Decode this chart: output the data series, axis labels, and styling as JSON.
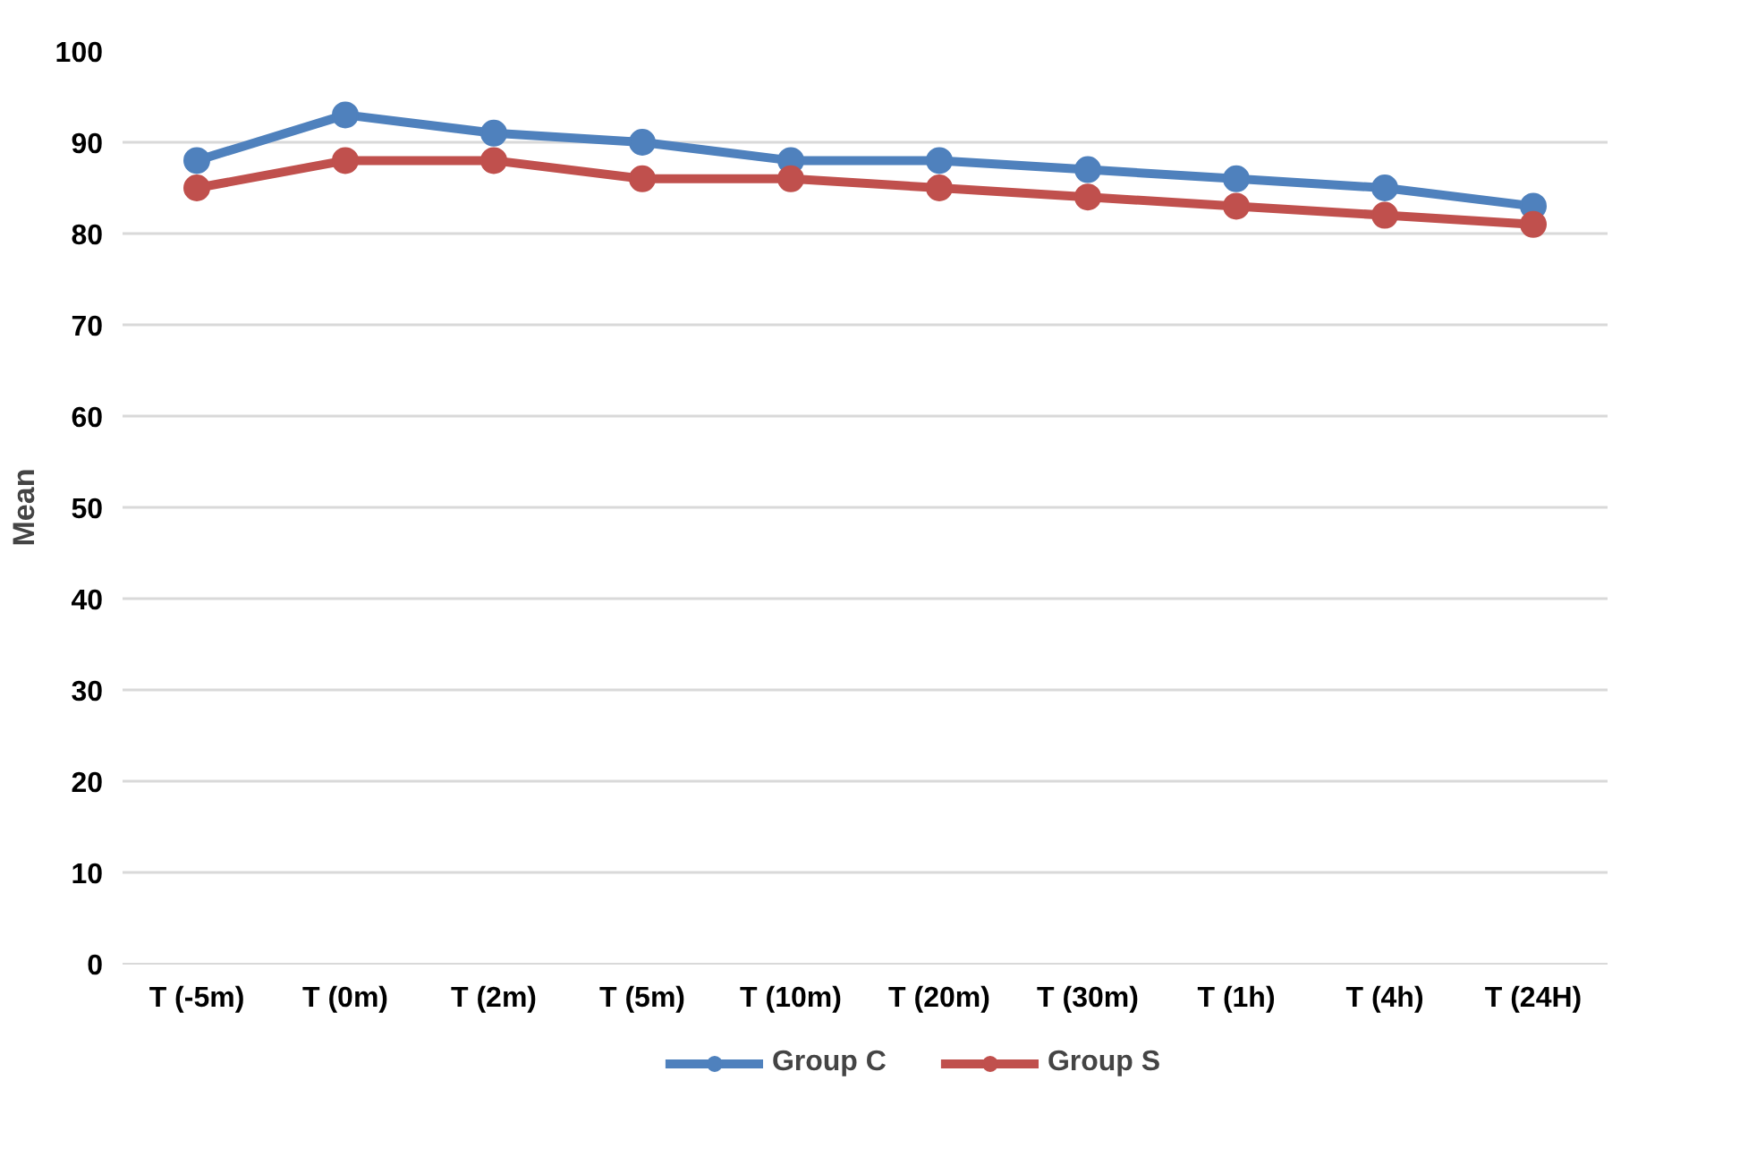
{
  "chart_data": {
    "type": "line",
    "ylabel": "Mean",
    "categories": [
      "T (-5m)",
      "T (0m)",
      "T (2m)",
      "T (5m)",
      "T (10m)",
      "T (20m)",
      "T (30m)",
      "T (1h)",
      "T (4h)",
      "T (24H)"
    ],
    "series": [
      {
        "name": "Group C",
        "color": "#4f81bd",
        "values": [
          88,
          93,
          91,
          90,
          88,
          88,
          87,
          86,
          85,
          83
        ]
      },
      {
        "name": "Group S",
        "color": "#c0504d",
        "values": [
          85,
          88,
          88,
          86,
          86,
          85,
          84,
          83,
          82,
          81
        ]
      }
    ],
    "ylim": [
      0,
      100
    ],
    "yticks": [
      0,
      10,
      20,
      30,
      40,
      50,
      60,
      70,
      80,
      90,
      100
    ],
    "grid": "y",
    "legend": "bottom",
    "marker": "circle",
    "line_style": "solid"
  }
}
